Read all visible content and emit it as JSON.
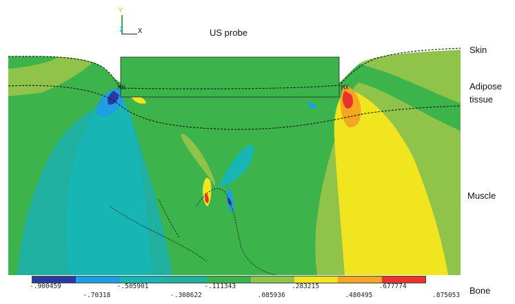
{
  "triad": {
    "y": "Y",
    "z": "Z",
    "x": "X"
  },
  "probe_label": "US probe",
  "labels": {
    "skin": "Skin",
    "adipose_line1": "Adipose",
    "adipose_line2": "tissue",
    "muscle": "Muscle",
    "bone": "Bone"
  },
  "markers": {
    "min": "MN",
    "max": "MX"
  },
  "legend": {
    "colors": [
      "#2b3aa0",
      "#1f9ee6",
      "#18b5b5",
      "#1fb0a0",
      "#3cb44b",
      "#8fc34a",
      "#f0e51f",
      "#f5a623",
      "#e8322b"
    ],
    "upper_values": [
      "-.900459",
      "-.505901",
      "-.111343",
      ".283215",
      ".677774"
    ],
    "lower_values": [
      "-.70318",
      "-.308622",
      ".085936",
      ".480495",
      ".875053"
    ]
  }
}
